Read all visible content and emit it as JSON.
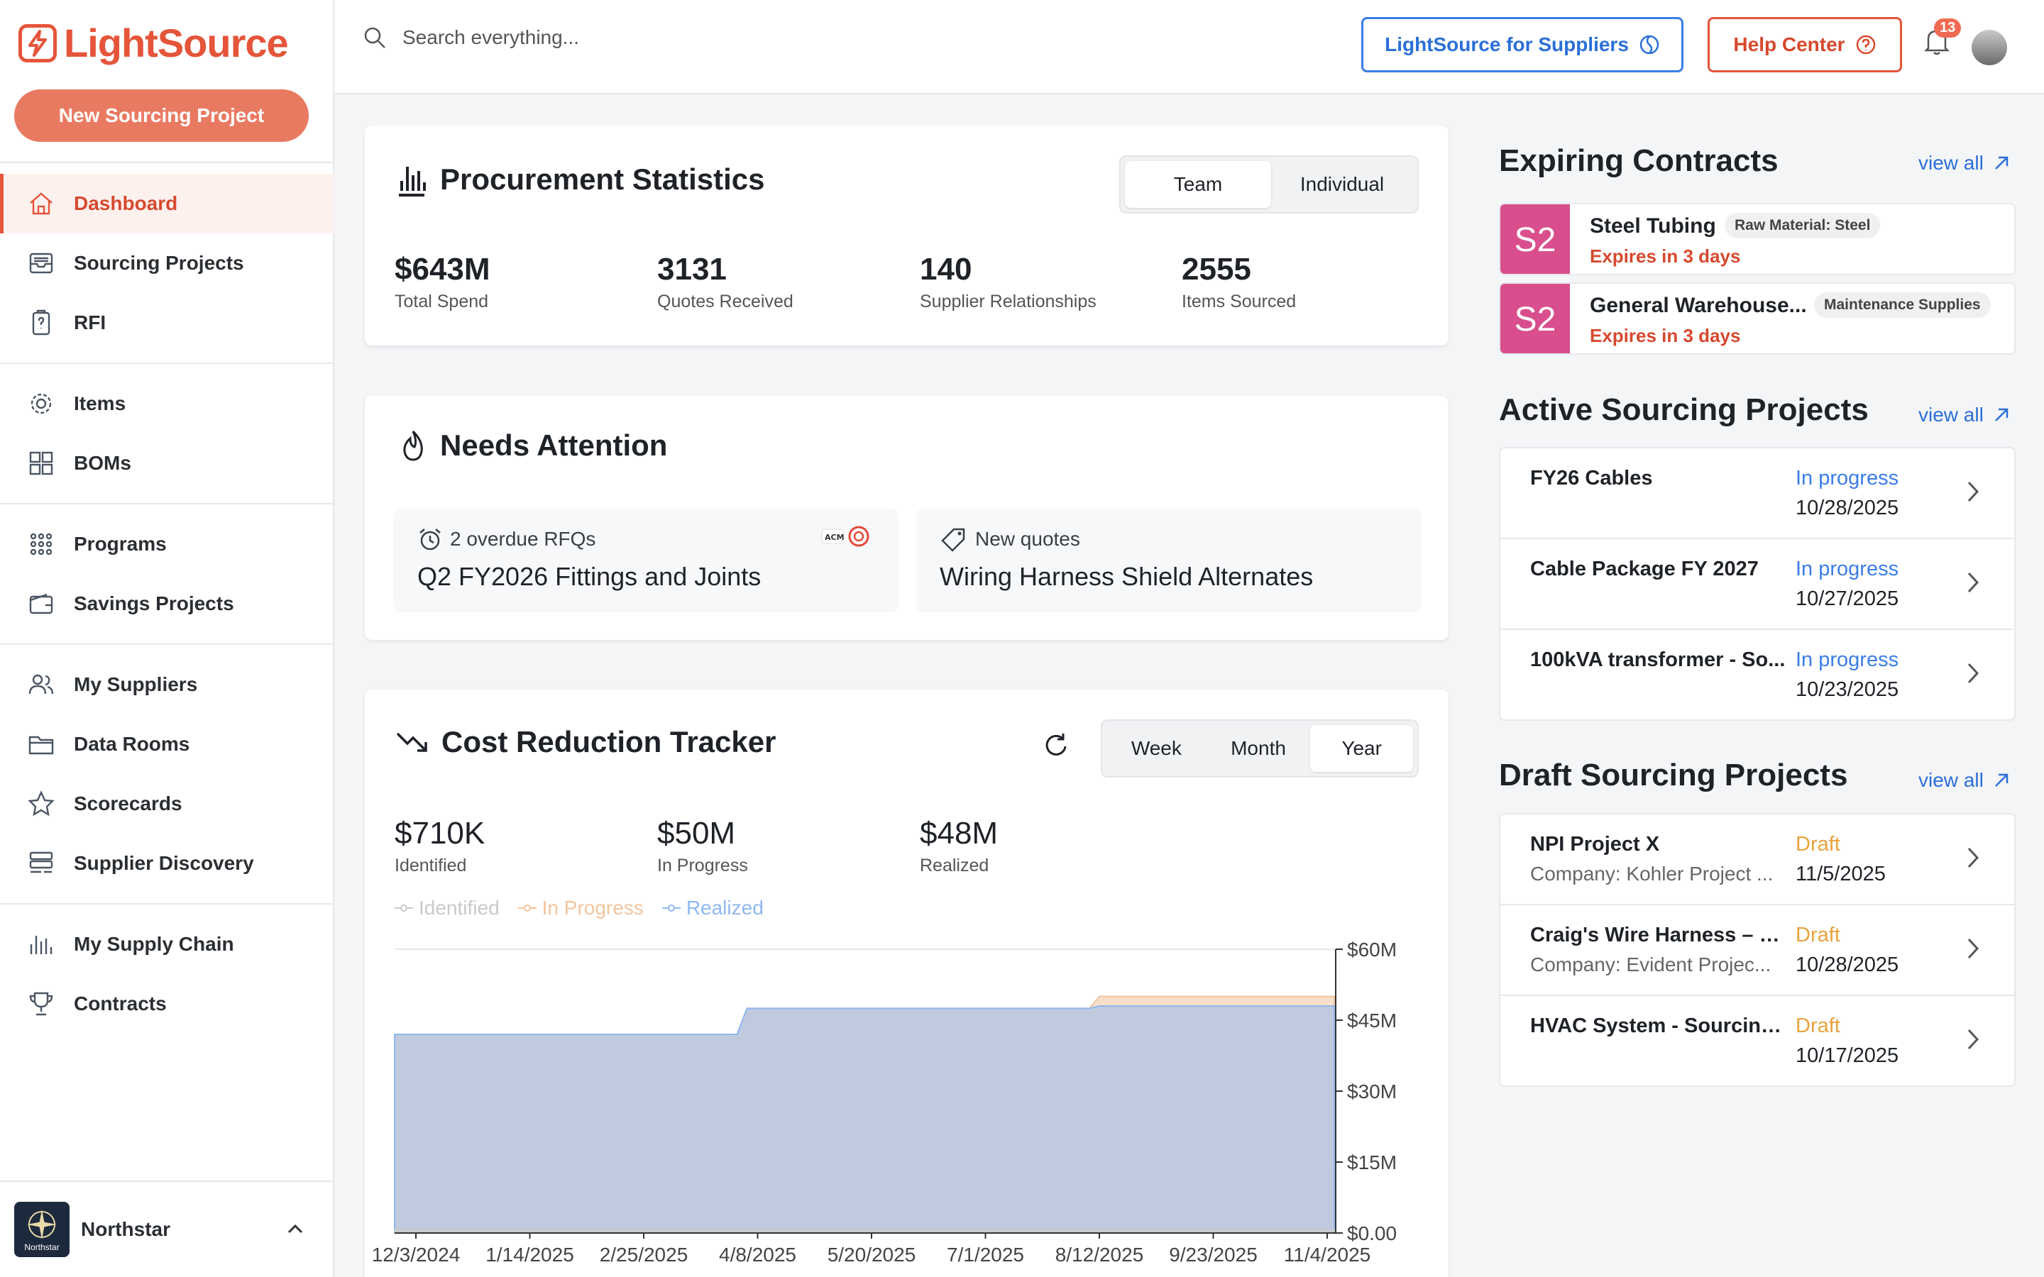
{
  "brand": {
    "name": "LightSource",
    "color": "#e5553a"
  },
  "sidebar": {
    "new_project_label": "New Sourcing Project",
    "items": [
      {
        "label": "Dashboard",
        "icon": "home-icon"
      },
      {
        "label": "Sourcing Projects",
        "icon": "inbox-icon"
      },
      {
        "label": "RFI",
        "icon": "clipboard-question-icon"
      },
      {
        "label": "Items",
        "icon": "gear-icon"
      },
      {
        "label": "BOMs",
        "icon": "grid-icon"
      },
      {
        "label": "Programs",
        "icon": "dots-grid-icon"
      },
      {
        "label": "Savings Projects",
        "icon": "wallet-icon"
      },
      {
        "label": "My Suppliers",
        "icon": "users-icon"
      },
      {
        "label": "Data Rooms",
        "icon": "folder-icon"
      },
      {
        "label": "Scorecards",
        "icon": "star-icon"
      },
      {
        "label": "Supplier Discovery",
        "icon": "stack-search-icon"
      },
      {
        "label": "My Supply Chain",
        "icon": "bar-chart-icon"
      },
      {
        "label": "Contracts",
        "icon": "trophy-icon"
      }
    ],
    "org": {
      "name": "Northstar",
      "logo_text": "Northstar"
    }
  },
  "topbar": {
    "search_placeholder": "Search everything...",
    "suppliers_label": "LightSource for Suppliers",
    "help_label": "Help Center",
    "notifications_count": "13"
  },
  "stats": {
    "title": "Procurement Statistics",
    "toggle": [
      "Team",
      "Individual"
    ],
    "items": [
      {
        "value": "$643M",
        "label": "Total Spend"
      },
      {
        "value": "3131",
        "label": "Quotes Received"
      },
      {
        "value": "140",
        "label": "Supplier Relationships"
      },
      {
        "value": "2555",
        "label": "Items Sourced"
      }
    ]
  },
  "attention": {
    "title": "Needs Attention",
    "cards": [
      {
        "sub": "2 overdue RFQs",
        "main": "Q2 FY2026 Fittings and Joints"
      },
      {
        "sub": "New quotes",
        "main": "Wiring Harness Shield Alternates"
      }
    ]
  },
  "tracker": {
    "title": "Cost Reduction Tracker",
    "range": [
      "Week",
      "Month",
      "Year"
    ],
    "stats": [
      {
        "value": "$710K",
        "label": "Identified"
      },
      {
        "value": "$50M",
        "label": "In Progress"
      },
      {
        "value": "$48M",
        "label": "Realized"
      }
    ],
    "colors": {
      "identified": "#c9c9c9",
      "in_progress": "#f2c49e",
      "realized": "#8fb8ef"
    }
  },
  "chart_data": {
    "type": "area",
    "x": [
      "12/3/2024",
      "1/14/2025",
      "2/25/2025",
      "4/8/2025",
      "5/20/2025",
      "7/1/2025",
      "8/12/2025",
      "9/23/2025",
      "11/4/2025"
    ],
    "y_ticks": [
      "$60M",
      "$45M",
      "$30M",
      "$15M",
      "$0.00"
    ],
    "ylim": [
      0,
      60
    ],
    "legend_position": "top-left",
    "series": [
      {
        "name": "Identified",
        "values": [
          0.7,
          0.7,
          0.7,
          0.7,
          0.7,
          0.7,
          0.7,
          0.7,
          0.7
        ]
      },
      {
        "name": "In Progress",
        "values": [
          42,
          42,
          42,
          47.5,
          47.5,
          47.5,
          50,
          50,
          50
        ]
      },
      {
        "name": "Realized",
        "values": [
          42,
          42,
          42,
          47.5,
          47.5,
          47.5,
          48,
          48,
          48
        ]
      }
    ]
  },
  "expiring": {
    "title": "Expiring Contracts",
    "view_all": "view all",
    "items": [
      {
        "badge": "S2",
        "name": "Steel Tubing",
        "tag": "Raw Material: Steel",
        "expires": "Expires in 3 days"
      },
      {
        "badge": "S2",
        "name": "General Warehouse...",
        "tag": "Maintenance Supplies",
        "expires": "Expires in 3 days"
      }
    ]
  },
  "active": {
    "title": "Active Sourcing Projects",
    "view_all": "view all",
    "items": [
      {
        "name": "FY26 Cables",
        "status": "In progress",
        "date": "10/28/2025"
      },
      {
        "name": "Cable Package FY 2027",
        "status": "In progress",
        "date": "10/27/2025"
      },
      {
        "name": "100kVA transformer - So...",
        "status": "In progress",
        "date": "10/23/2025"
      }
    ]
  },
  "drafts": {
    "title": "Draft Sourcing Projects",
    "view_all": "view all",
    "items": [
      {
        "name": "NPI Project X",
        "company": "Company: Kohler Project ...",
        "status": "Draft",
        "date": "11/5/2025"
      },
      {
        "name": "Craig's Wire Harness – 1...",
        "company": "Company: Evident Projec...",
        "status": "Draft",
        "date": "10/28/2025"
      },
      {
        "name": "HVAC System - Sourcing...",
        "company": "",
        "status": "Draft",
        "date": "10/17/2025"
      }
    ]
  }
}
